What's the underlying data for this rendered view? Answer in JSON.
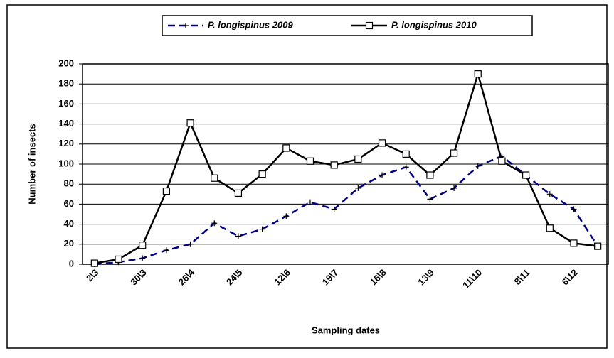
{
  "chart_data": {
    "type": "line",
    "x_label": "Sampling dates",
    "y_label": "Number of insects",
    "categories": [
      "2\\3",
      null,
      "30\\3",
      null,
      "26\\4",
      null,
      "24\\5",
      null,
      "12\\6",
      null,
      "19\\7",
      null,
      "16\\8",
      null,
      "13\\9",
      null,
      "11\\10",
      null,
      "8\\11",
      null,
      "6\\12",
      null
    ],
    "series": [
      {
        "name": "P. longispinus 2009",
        "color": "#000080",
        "dashed": true,
        "marker": "plus",
        "values": [
          0,
          2,
          6,
          14,
          20,
          41,
          28,
          35,
          48,
          62,
          55,
          76,
          89,
          97,
          65,
          76,
          98,
          108,
          89,
          70,
          55,
          18
        ]
      },
      {
        "name": "P. longispinus 2010",
        "color": "#000000",
        "dashed": false,
        "marker": "square",
        "values": [
          1,
          5,
          19,
          73,
          141,
          86,
          71,
          90,
          116,
          103,
          99,
          105,
          121,
          110,
          89,
          111,
          190,
          103,
          89,
          36,
          21,
          18
        ]
      }
    ],
    "ylim": [
      0,
      200
    ],
    "yticks": [
      0,
      20,
      40,
      60,
      80,
      100,
      120,
      140,
      160,
      180,
      200
    ],
    "grid": true,
    "legend": "top"
  }
}
